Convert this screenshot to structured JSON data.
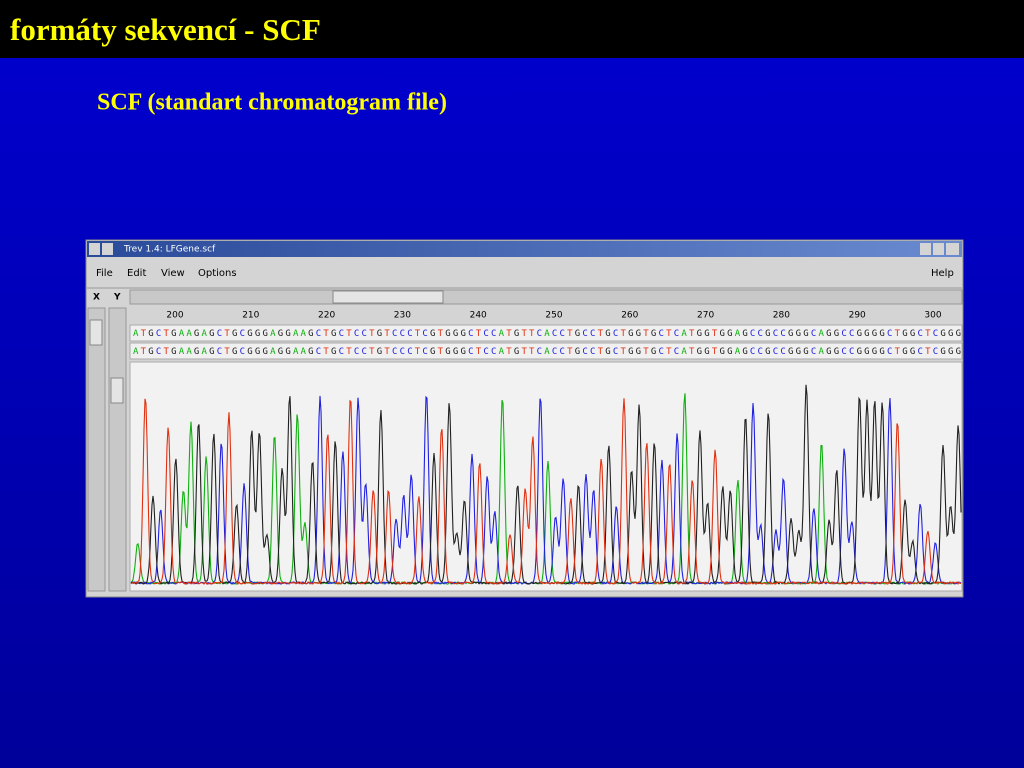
{
  "slide": {
    "title": "formáty sekvencí - SCF",
    "subtitle": "SCF (standart chromatogram file)"
  },
  "window": {
    "title": "Trev 1.4: LFGene.scf",
    "menu": [
      "File",
      "Edit",
      "View",
      "Options"
    ],
    "help": "Help",
    "axes": [
      "X",
      "Y"
    ],
    "ruler": [
      200,
      210,
      220,
      230,
      240,
      250,
      260,
      270,
      280,
      290,
      300
    ],
    "sequences": [
      "ATGCTGAAGAGCTGCGGGAGGAAGCTGCTCCTGTCCCTCGTGGGCTCCATGTTCACCTGCCTGCTGGTGCTCATGGTGGAGCCGCCGGGCAGGCCGGGGCTGGCTCGGG",
      "ATGCTGAAGAGCTGCGGGAGGAAGCTGCTCCTGTCCCTCGTGGGCTCCATGTTCACCTGCCTGCTGGTGCTCATGGTGGAGCCGCCGGGCAGGCCGGGGCTGGCTCGGG"
    ]
  }
}
